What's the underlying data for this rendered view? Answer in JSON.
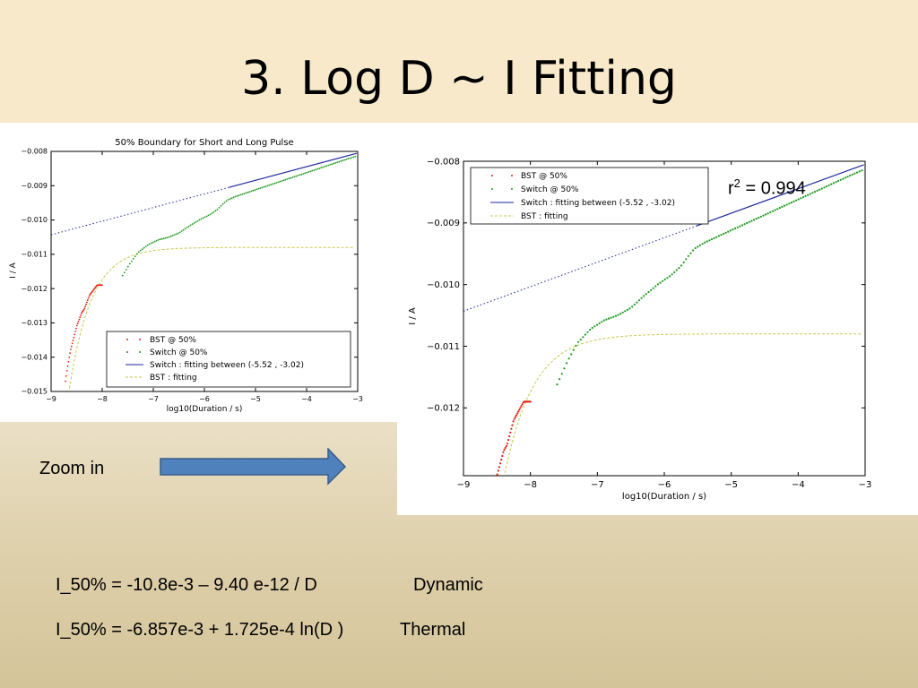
{
  "slide": {
    "title": "3. Log D ~ I Fitting",
    "zoom_label": "Zoom in",
    "r2_label": "r",
    "r2_sup": "2",
    "r2_value": " = 0.994",
    "equations": [
      {
        "text": "I_50% = -10.8e-3 – 9.40 e-12 / D",
        "tag": "Dynamic"
      },
      {
        "text": "I_50% = -6.857e-3 + 1.725e-4 ln(D )",
        "tag": "Thermal"
      }
    ],
    "arrow_color": "#4f81bd"
  },
  "chart_data": [
    {
      "type": "scatter",
      "title": "50% Boundary for Short and Long Pulse",
      "xlabel": "log10(Duration / s)",
      "ylabel": "I / A",
      "xlim": [
        -9,
        -3
      ],
      "ylim": [
        -0.015,
        -0.008
      ],
      "x_ticks": [
        -9,
        -8,
        -7,
        -6,
        -5,
        -4,
        -3
      ],
      "x_tick_labels": [
        "−9",
        "−8",
        "−7",
        "−6",
        "−5",
        "−4",
        "−3"
      ],
      "y_ticks": [
        -0.008,
        -0.009,
        -0.01,
        -0.011,
        -0.012,
        -0.013,
        -0.014,
        -0.015
      ],
      "y_tick_labels": [
        "−0.008",
        "−0.009",
        "−0.010",
        "−0.011",
        "−0.012",
        "−0.013",
        "−0.014",
        "−0.015"
      ],
      "legend": {
        "position": "lower-right",
        "entries": [
          "BST @ 50%",
          "Switch @ 50%",
          "Switch : fitting between (-5.52 , -3.02)",
          "BST : fitting"
        ]
      },
      "grid": false
    },
    {
      "type": "scatter",
      "title": "",
      "xlabel": "log10(Duration / s)",
      "ylabel": "I / A",
      "xlim": [
        -9,
        -3
      ],
      "ylim": [
        -0.0131,
        -0.008
      ],
      "x_ticks": [
        -9,
        -8,
        -7,
        -6,
        -5,
        -4,
        -3
      ],
      "x_tick_labels": [
        "−9",
        "−8",
        "−7",
        "−6",
        "−5",
        "−4",
        "−3"
      ],
      "y_ticks": [
        -0.008,
        -0.009,
        -0.01,
        -0.011,
        -0.012
      ],
      "y_tick_labels": [
        "−0.008",
        "−0.009",
        "−0.010",
        "−0.011",
        "−0.012"
      ],
      "legend": {
        "position": "upper-left",
        "entries": [
          "BST @ 50%",
          "Switch @ 50%",
          "Switch : fitting between (-5.52 , -3.02)",
          "BST : fitting"
        ]
      },
      "grid": false
    }
  ],
  "series": {
    "bst": {
      "name": "BST @ 50%",
      "color": "#e02010",
      "x": [
        -8.72,
        -8.68,
        -8.62,
        -8.55,
        -8.5,
        -8.45,
        -8.4,
        -8.35,
        -8.3,
        -8.25,
        -8.2,
        -8.15,
        -8.1,
        -8.05,
        -8.0
      ],
      "y": [
        -0.0147,
        -0.0143,
        -0.0138,
        -0.0134,
        -0.0131,
        -0.0129,
        -0.0127,
        -0.0126,
        -0.0124,
        -0.0122,
        -0.0121,
        -0.012,
        -0.0119,
        -0.0119,
        -0.0119
      ]
    },
    "switch": {
      "name": "Switch @ 50%",
      "color": "#1a9a1a",
      "x": [
        -7.6,
        -7.45,
        -7.3,
        -7.1,
        -6.9,
        -6.7,
        -6.5,
        -6.3,
        -6.1,
        -5.9,
        -5.75,
        -5.65,
        -5.55,
        -5.4,
        -5.2,
        -5.0,
        -4.8,
        -4.6,
        -4.4,
        -4.2,
        -4.0,
        -3.8,
        -3.6,
        -3.4,
        -3.2,
        -3.05
      ],
      "y": [
        -0.01162,
        -0.01125,
        -0.01095,
        -0.01072,
        -0.01058,
        -0.0105,
        -0.01038,
        -0.01018,
        -0.01,
        -0.00985,
        -0.0097,
        -0.00955,
        -0.00942,
        -0.00932,
        -0.00922,
        -0.00912,
        -0.00902,
        -0.00892,
        -0.00882,
        -0.00872,
        -0.00862,
        -0.00852,
        -0.00842,
        -0.00832,
        -0.00822,
        -0.00815
      ]
    },
    "switch_fit": {
      "name": "Switch : fitting between (-5.52 , -3.02)",
      "color": "#1f2a9e",
      "x_solid": [
        -5.52,
        -3.02
      ],
      "x_dotted": [
        -9,
        -5.52
      ],
      "intercept": -0.006857,
      "slope_ln": 0.0001725
    },
    "bst_fit": {
      "name": "BST : fitting",
      "color": "#c8c84a",
      "x_from": -8.7,
      "x_to": -3.05,
      "c0": -0.0108,
      "c1": -9.4e-12
    }
  }
}
